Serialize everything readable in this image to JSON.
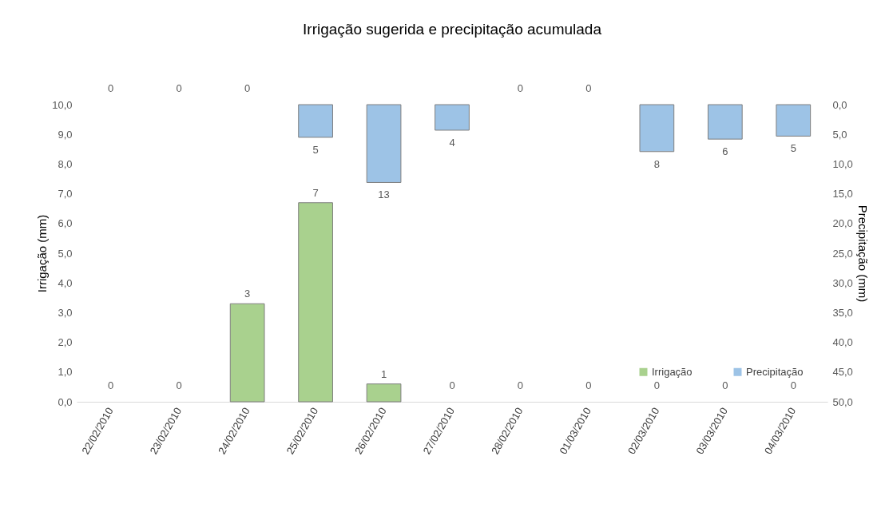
{
  "chart_data": {
    "type": "bar",
    "title": "Irrigação sugerida e precipitação acumulada",
    "categories": [
      "22/02/2010",
      "23/02/2010",
      "24/02/2010",
      "25/02/2010",
      "26/02/2010",
      "27/02/2010",
      "28/02/2010",
      "01/03/2010",
      "02/03/2010",
      "03/03/2010",
      "04/03/2010"
    ],
    "ylabel": "Irrigação (mm)",
    "y2label": "Precipitação (mm)",
    "ylim": [
      0,
      10
    ],
    "yticks": [
      {
        "value": 0,
        "label": "0,0"
      },
      {
        "value": 1,
        "label": "1,0"
      },
      {
        "value": 2,
        "label": "2,0"
      },
      {
        "value": 3,
        "label": "3,0"
      },
      {
        "value": 4,
        "label": "4,0"
      },
      {
        "value": 5,
        "label": "5,0"
      },
      {
        "value": 6,
        "label": "6,0"
      },
      {
        "value": 7,
        "label": "7,0"
      },
      {
        "value": 8,
        "label": "8,0"
      },
      {
        "value": 9,
        "label": "9,0"
      },
      {
        "value": 10,
        "label": "10,0"
      }
    ],
    "y2lim": [
      50,
      0
    ],
    "y2ticks": [
      {
        "value": 0,
        "label": "0,0"
      },
      {
        "value": 5,
        "label": "5,0"
      },
      {
        "value": 10,
        "label": "10,0"
      },
      {
        "value": 15,
        "label": "15,0"
      },
      {
        "value": 20,
        "label": "20,0"
      },
      {
        "value": 25,
        "label": "25,0"
      },
      {
        "value": 30,
        "label": "30,0"
      },
      {
        "value": 35,
        "label": "35,0"
      },
      {
        "value": 40,
        "label": "40,0"
      },
      {
        "value": 45,
        "label": "45,0"
      },
      {
        "value": 50,
        "label": "50,0"
      }
    ],
    "grid": false,
    "legend": "bottom right",
    "series": [
      {
        "name": "Irrigação",
        "color": "#a9d18e",
        "values": [
          0,
          0,
          3.3,
          6.7,
          0.6,
          0,
          0,
          0,
          0,
          0,
          0
        ],
        "value_labels": [
          "0",
          "0",
          "3",
          "7",
          "1",
          "0",
          "0",
          "0",
          "0",
          "0",
          "0"
        ]
      },
      {
        "name": "Precipitação",
        "color": "#9dc3e6",
        "axis": "y2",
        "values": [
          0,
          0,
          0,
          5.5,
          13.1,
          4.3,
          0,
          0,
          7.9,
          5.8,
          5.3
        ],
        "value_labels": [
          "0",
          "0",
          "0",
          "5",
          "13",
          "4",
          "0",
          "0",
          "8",
          "6",
          "5"
        ]
      }
    ]
  }
}
